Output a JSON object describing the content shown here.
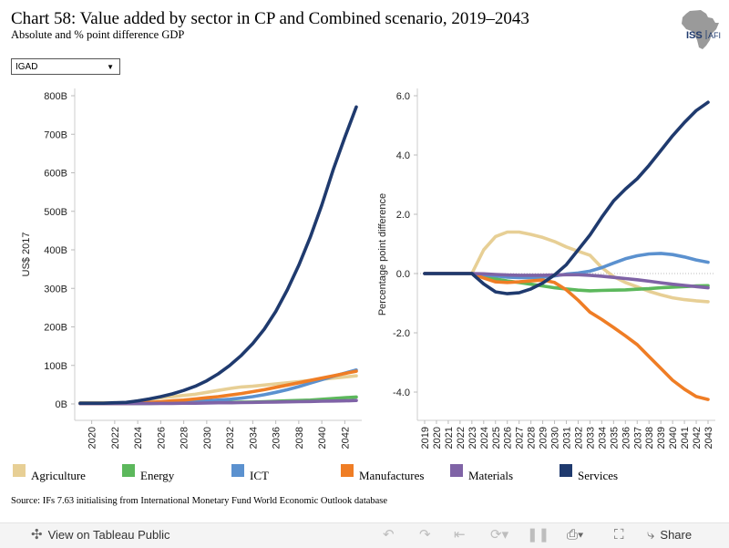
{
  "title": "Chart 58: Value added by sector in CP and Combined scenario, 2019–2043",
  "subtitle": "Absolute and % point difference GDP",
  "logo": {
    "text_left": "ISS",
    "text_right": "AFI",
    "map_color": "#9a9a9a",
    "text_color": "#1f3a6e"
  },
  "filter": {
    "selected": "IGAD",
    "arrow": "▼"
  },
  "colors": {
    "Agriculture": "#e7cf95",
    "Energy": "#5cb85c",
    "ICT": "#5b91cf",
    "Manufactures": "#ef7d25",
    "Materials": "#7f63a6",
    "Services": "#1f3a6e"
  },
  "legend": [
    {
      "label": "Agriculture",
      "color": "#e7cf95"
    },
    {
      "label": "Energy",
      "color": "#5cb85c"
    },
    {
      "label": "ICT",
      "color": "#5b91cf"
    },
    {
      "label": "Manufactures",
      "color": "#ef7d25"
    },
    {
      "label": "Materials",
      "color": "#7f63a6"
    },
    {
      "label": "Services",
      "color": "#1f3a6e"
    }
  ],
  "source": "Source: IFs 7.63 initialising from International Monetary Fund World Economic Outlook database",
  "footer": {
    "view_label": "View on Tableau Public",
    "share_label": "Share",
    "icons": [
      "tableau-icon",
      "undo-icon",
      "redo-icon",
      "revert-icon",
      "refresh-icon",
      "download-icon",
      "fullscreen-icon",
      "share-icon"
    ]
  },
  "chart_data": [
    {
      "type": "line",
      "ylabel": "US$ 2017",
      "xlabel": "",
      "ylim": [
        0,
        800
      ],
      "y_ticks": [
        0,
        100,
        200,
        300,
        400,
        500,
        600,
        700,
        800
      ],
      "y_tick_labels": [
        "0B",
        "100B",
        "200B",
        "300B",
        "400B",
        "500B",
        "600B",
        "700B",
        "800B"
      ],
      "x_ticks": [
        "2020",
        "2022",
        "2024",
        "2026",
        "2028",
        "2030",
        "2032",
        "2034",
        "2036",
        "2038",
        "2040",
        "2042"
      ],
      "x": [
        2019,
        2020,
        2021,
        2022,
        2023,
        2024,
        2025,
        2026,
        2027,
        2028,
        2029,
        2030,
        2031,
        2032,
        2033,
        2034,
        2035,
        2036,
        2037,
        2038,
        2039,
        2040,
        2041,
        2042,
        2043
      ],
      "series": [
        {
          "name": "Agriculture",
          "values": [
            3,
            3,
            3,
            3,
            3,
            8,
            12,
            16,
            19,
            22,
            25,
            30,
            35,
            40,
            44,
            46,
            49,
            52,
            55,
            58,
            61,
            64,
            67,
            70,
            73
          ]
        },
        {
          "name": "Energy",
          "values": [
            1,
            1,
            1,
            1,
            1,
            1,
            1.5,
            2,
            2,
            2.5,
            3,
            3,
            3.5,
            4,
            4.5,
            5,
            6,
            7,
            8,
            9,
            10,
            12,
            14,
            16,
            18
          ]
        },
        {
          "name": "ICT",
          "values": [
            1,
            1,
            1,
            1,
            1,
            2,
            3,
            4,
            5,
            6,
            7,
            8,
            10,
            12,
            15,
            19,
            24,
            30,
            37,
            45,
            54,
            63,
            72,
            80,
            88
          ]
        },
        {
          "name": "Manufactures",
          "values": [
            1,
            1,
            1,
            1,
            1,
            2,
            4,
            6,
            8,
            10,
            13,
            16,
            19,
            23,
            27,
            32,
            37,
            43,
            49,
            55,
            61,
            67,
            73,
            79,
            85
          ]
        },
        {
          "name": "Materials",
          "values": [
            1,
            1,
            1,
            1,
            1,
            1,
            1,
            1.5,
            1.5,
            2,
            2,
            2.5,
            3,
            3,
            3.5,
            4,
            4.5,
            5,
            5.5,
            6,
            6.5,
            7,
            7.5,
            8,
            9
          ]
        },
        {
          "name": "Services",
          "values": [
            2,
            2,
            2,
            3,
            4,
            8,
            13,
            19,
            26,
            35,
            46,
            60,
            78,
            100,
            126,
            157,
            194,
            240,
            296,
            360,
            433,
            516,
            609,
            692,
            771
          ]
        }
      ]
    },
    {
      "type": "line",
      "ylabel": "Percentage point difference",
      "xlabel": "",
      "ylim": [
        -4.4,
        6.0
      ],
      "y_ticks": [
        -4,
        -2,
        0,
        2,
        4,
        6
      ],
      "y_tick_labels": [
        "-4.0",
        "-2.0",
        "0.0",
        "2.0",
        "4.0",
        "6.0"
      ],
      "x_ticks": [
        "2019",
        "2020",
        "2021",
        "2022",
        "2023",
        "2024",
        "2025",
        "2026",
        "2027",
        "2028",
        "2029",
        "2030",
        "2031",
        "2032",
        "2033",
        "2034",
        "2035",
        "2036",
        "2037",
        "2038",
        "2039",
        "2040",
        "2041",
        "2042",
        "2043"
      ],
      "x": [
        2019,
        2020,
        2021,
        2022,
        2023,
        2024,
        2025,
        2026,
        2027,
        2028,
        2029,
        2030,
        2031,
        2032,
        2033,
        2034,
        2035,
        2036,
        2037,
        2038,
        2039,
        2040,
        2041,
        2042,
        2043
      ],
      "series": [
        {
          "name": "Agriculture",
          "values": [
            0,
            0,
            0,
            0,
            0,
            0.8,
            1.25,
            1.4,
            1.4,
            1.32,
            1.22,
            1.08,
            0.9,
            0.75,
            0.62,
            0.2,
            -0.1,
            -0.3,
            -0.45,
            -0.6,
            -0.72,
            -0.82,
            -0.88,
            -0.92,
            -0.95
          ]
        },
        {
          "name": "Energy",
          "values": [
            0,
            0,
            0,
            0,
            0,
            -0.1,
            -0.18,
            -0.25,
            -0.3,
            -0.36,
            -0.42,
            -0.48,
            -0.52,
            -0.56,
            -0.58,
            -0.57,
            -0.56,
            -0.55,
            -0.53,
            -0.51,
            -0.48,
            -0.46,
            -0.44,
            -0.42,
            -0.41
          ]
        },
        {
          "name": "ICT",
          "values": [
            0,
            0,
            0,
            0,
            0,
            -0.04,
            -0.08,
            -0.12,
            -0.14,
            -0.14,
            -0.12,
            -0.08,
            -0.02,
            0.02,
            0.08,
            0.2,
            0.35,
            0.5,
            0.6,
            0.66,
            0.68,
            0.64,
            0.56,
            0.46,
            0.38
          ]
        },
        {
          "name": "Manufactures",
          "values": [
            0,
            0,
            0,
            0,
            0,
            -0.15,
            -0.28,
            -0.3,
            -0.28,
            -0.25,
            -0.22,
            -0.3,
            -0.55,
            -0.9,
            -1.3,
            -1.55,
            -1.82,
            -2.1,
            -2.4,
            -2.8,
            -3.2,
            -3.6,
            -3.9,
            -4.15,
            -4.25
          ]
        },
        {
          "name": "Materials",
          "values": [
            0,
            0,
            0,
            0,
            0,
            -0.01,
            -0.03,
            -0.05,
            -0.06,
            -0.06,
            -0.06,
            -0.05,
            -0.04,
            -0.04,
            -0.06,
            -0.09,
            -0.13,
            -0.17,
            -0.21,
            -0.26,
            -0.31,
            -0.36,
            -0.4,
            -0.44,
            -0.48
          ]
        },
        {
          "name": "Services",
          "values": [
            0,
            0,
            0,
            0,
            0,
            -0.35,
            -0.62,
            -0.68,
            -0.65,
            -0.52,
            -0.32,
            -0.05,
            0.3,
            0.8,
            1.3,
            1.9,
            2.45,
            2.85,
            3.2,
            3.65,
            4.15,
            4.65,
            5.1,
            5.5,
            5.78
          ]
        }
      ]
    }
  ]
}
